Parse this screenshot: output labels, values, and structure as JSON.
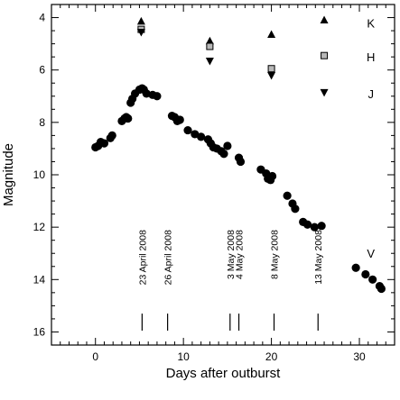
{
  "chart_data": {
    "type": "scatter",
    "xlabel": "Days after outburst",
    "ylabel": "Magnitude",
    "xlim": [
      -5,
      34
    ],
    "ylim": [
      16.5,
      3.5
    ],
    "y_inverted": true,
    "x_ticks": [
      0,
      10,
      20,
      30
    ],
    "y_ticks": [
      4,
      6,
      8,
      10,
      12,
      14,
      16
    ],
    "series": [
      {
        "name": "V",
        "marker": "circle",
        "points": [
          [
            0.0,
            8.95
          ],
          [
            0.3,
            8.9
          ],
          [
            0.6,
            8.75
          ],
          [
            1.0,
            8.8
          ],
          [
            1.7,
            8.6
          ],
          [
            1.9,
            8.5
          ],
          [
            3.0,
            7.95
          ],
          [
            3.3,
            7.85
          ],
          [
            3.5,
            7.8
          ],
          [
            3.7,
            7.85
          ],
          [
            4.0,
            7.25
          ],
          [
            4.2,
            7.1
          ],
          [
            4.5,
            6.9
          ],
          [
            5.0,
            6.75
          ],
          [
            5.3,
            6.7
          ],
          [
            5.5,
            6.75
          ],
          [
            5.8,
            6.9
          ],
          [
            6.5,
            6.95
          ],
          [
            7.0,
            7.0
          ],
          [
            8.7,
            7.75
          ],
          [
            9.0,
            7.8
          ],
          [
            9.3,
            7.95
          ],
          [
            9.6,
            7.9
          ],
          [
            10.5,
            8.3
          ],
          [
            11.3,
            8.45
          ],
          [
            12.0,
            8.55
          ],
          [
            12.8,
            8.65
          ],
          [
            13.1,
            8.8
          ],
          [
            13.4,
            8.95
          ],
          [
            13.8,
            9.0
          ],
          [
            14.3,
            9.1
          ],
          [
            14.6,
            9.2
          ],
          [
            15.0,
            8.9
          ],
          [
            16.3,
            9.35
          ],
          [
            16.5,
            9.5
          ],
          [
            18.8,
            9.8
          ],
          [
            19.4,
            9.95
          ],
          [
            19.6,
            10.15
          ],
          [
            19.9,
            10.2
          ],
          [
            20.1,
            10.05
          ],
          [
            21.8,
            10.8
          ],
          [
            22.4,
            11.1
          ],
          [
            22.7,
            11.3
          ],
          [
            23.6,
            11.8
          ],
          [
            24.1,
            11.9
          ],
          [
            24.9,
            12.0
          ],
          [
            25.7,
            11.95
          ],
          [
            29.6,
            13.55
          ],
          [
            30.7,
            13.8
          ],
          [
            31.5,
            14.0
          ],
          [
            32.3,
            14.25
          ],
          [
            32.5,
            14.35
          ]
        ]
      },
      {
        "name": "K",
        "marker": "triangle-up",
        "points": [
          [
            5.2,
            4.15
          ],
          [
            13.0,
            4.9
          ],
          [
            20.0,
            4.65
          ],
          [
            26.0,
            4.1
          ]
        ]
      },
      {
        "name": "H",
        "marker": "square",
        "points": [
          [
            5.2,
            4.45
          ],
          [
            13.0,
            5.1
          ],
          [
            20.0,
            5.95
          ],
          [
            26.0,
            5.45
          ]
        ]
      },
      {
        "name": "J",
        "marker": "triangle-down",
        "points": [
          [
            5.2,
            4.55
          ],
          [
            13.0,
            5.65
          ],
          [
            20.0,
            6.2
          ],
          [
            26.0,
            6.85
          ]
        ]
      }
    ],
    "legend_labels": [
      {
        "text": "K",
        "x": 31.3,
        "y": 4.2
      },
      {
        "text": "H",
        "x": 31.3,
        "y": 5.5
      },
      {
        "text": "J",
        "x": 31.3,
        "y": 6.9
      },
      {
        "text": "V",
        "x": 31.3,
        "y": 13.0
      }
    ],
    "date_markers": [
      {
        "day": 5.3,
        "label": "23 April 2008"
      },
      {
        "day": 8.2,
        "label": "26 April 2008"
      },
      {
        "day": 15.3,
        "label": "3 May 2008"
      },
      {
        "day": 16.3,
        "label": "4 May 2008"
      },
      {
        "day": 20.3,
        "label": "8 May 2008"
      },
      {
        "day": 25.3,
        "label": "13 May 2008"
      }
    ],
    "date_label_top_magnitude": 12.1,
    "date_tick_range": [
      15.3,
      15.95
    ]
  }
}
